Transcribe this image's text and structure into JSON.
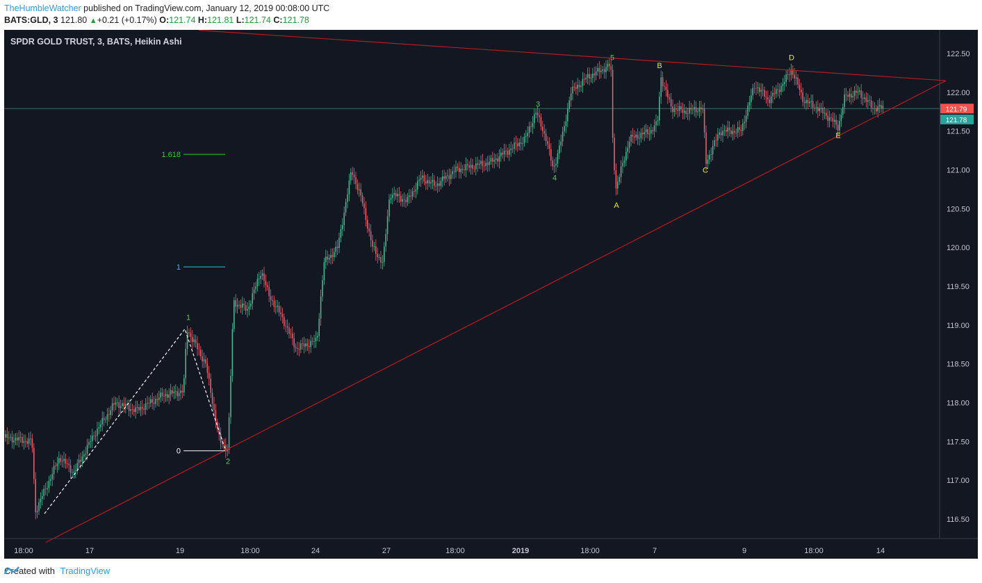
{
  "header": {
    "author": "TheHumbleWatcher",
    "published": " published on TradingView.com, January 12, 2019 00:08:00 UTC",
    "symbol_tf": "BATS:GLD, 3",
    "last": "121.80",
    "change": "+0.21 (+0.17%)",
    "o_label": "O:",
    "o_val": "121.74",
    "h_label": "H:",
    "h_val": "121.81",
    "l_label": "L:",
    "l_val": "121.74",
    "c_label": "C:",
    "c_val": "121.78"
  },
  "legend": {
    "title": "SPDR GOLD TRUST, 3, BATS, Heikin Ashi"
  },
  "footer": {
    "created_with": "Created with",
    "brand": "TradingView"
  },
  "colors": {
    "background": "#131722",
    "up_candle": "#4fb38f",
    "down_candle": "#e0606e",
    "trend_line": "#b71c1c",
    "wave_impulse_label": "#4cd14c",
    "wave_corrective_label": "#e6e64a",
    "fib_1": "#26c6da",
    "fib_1618": "#33cc33",
    "price_tag_red": "#ef5350",
    "price_tag_green": "#26a69a"
  },
  "chart_data": {
    "type": "line",
    "chart_style": "Heikin Ashi candlestick",
    "y_axis": {
      "ticks": [
        116.5,
        117.0,
        117.5,
        118.0,
        118.5,
        119.0,
        119.5,
        120.0,
        120.5,
        121.0,
        121.5,
        122.0,
        122.5
      ],
      "tick_labels": [
        "116.50",
        "117.00",
        "117.50",
        "118.00",
        "118.50",
        "119.00",
        "119.50",
        "120.00",
        "120.50",
        "121.00",
        "121.50",
        "122.00",
        "122.50"
      ],
      "range": [
        116.2,
        122.85
      ]
    },
    "x_axis": {
      "tick_labels": [
        "18:00",
        "17",
        "19",
        "18:00",
        "24",
        "27",
        "18:00",
        "2019",
        "18:00",
        "7",
        "9",
        "18:00",
        "14"
      ]
    },
    "price_path": [
      [
        0,
        117.55
      ],
      [
        0.04,
        117.5
      ],
      [
        0.045,
        116.6
      ],
      [
        0.08,
        117.3
      ],
      [
        0.1,
        117.1
      ],
      [
        0.13,
        117.6
      ],
      [
        0.16,
        118.0
      ],
      [
        0.19,
        117.9
      ],
      [
        0.23,
        118.1
      ],
      [
        0.258,
        118.15
      ],
      [
        0.263,
        118.95
      ],
      [
        0.29,
        118.5
      ],
      [
        0.31,
        117.5
      ],
      [
        0.322,
        117.4
      ],
      [
        0.33,
        119.3
      ],
      [
        0.35,
        119.2
      ],
      [
        0.37,
        119.7
      ],
      [
        0.38,
        119.4
      ],
      [
        0.4,
        119.1
      ],
      [
        0.42,
        118.7
      ],
      [
        0.45,
        118.8
      ],
      [
        0.46,
        119.8
      ],
      [
        0.48,
        120.0
      ],
      [
        0.5,
        121.0
      ],
      [
        0.515,
        120.6
      ],
      [
        0.53,
        120.0
      ],
      [
        0.545,
        119.8
      ],
      [
        0.555,
        120.7
      ],
      [
        0.58,
        120.6
      ],
      [
        0.6,
        120.9
      ],
      [
        0.62,
        120.8
      ],
      [
        0.65,
        121.0
      ],
      [
        0.7,
        121.1
      ],
      [
        0.75,
        121.4
      ],
      [
        0.765,
        121.75
      ],
      [
        0.78,
        121.4
      ],
      [
        0.79,
        121.0
      ],
      [
        0.805,
        121.5
      ],
      [
        0.815,
        122.0
      ],
      [
        0.84,
        122.2
      ],
      [
        0.873,
        122.35
      ],
      [
        0.875,
        121.5
      ],
      [
        0.88,
        120.75
      ],
      [
        0.9,
        121.4
      ],
      [
        0.93,
        121.5
      ],
      [
        0.94,
        121.6
      ],
      [
        0.945,
        122.2
      ],
      [
        0.96,
        121.8
      ],
      [
        0.98,
        121.75
      ],
      [
        1.005,
        121.8
      ],
      [
        1.01,
        121.1
      ],
      [
        1.03,
        121.5
      ],
      [
        1.06,
        121.5
      ],
      [
        1.08,
        122.1
      ],
      [
        1.1,
        121.9
      ],
      [
        1.12,
        122.1
      ],
      [
        1.133,
        122.3
      ],
      [
        1.15,
        121.9
      ],
      [
        1.17,
        121.8
      ],
      [
        1.19,
        121.65
      ],
      [
        1.2,
        121.55
      ],
      [
        1.21,
        121.95
      ],
      [
        1.23,
        122.0
      ],
      [
        1.25,
        121.8
      ],
      [
        1.265,
        121.8
      ]
    ],
    "trendlines": [
      {
        "name": "resistance",
        "from": [
          0.28,
          122.8
        ],
        "to": [
          1.355,
          122.15
        ]
      },
      {
        "name": "support",
        "from": [
          0.06,
          116.2
        ],
        "to": [
          1.355,
          122.15
        ]
      }
    ],
    "horizontal_line": 121.79,
    "wave_labels": [
      {
        "text": "1",
        "x": 0.265,
        "y": 119.1,
        "group": "impulse"
      },
      {
        "text": "2",
        "x": 0.322,
        "y": 117.25,
        "group": "impulse"
      },
      {
        "text": "3",
        "x": 0.768,
        "y": 121.85,
        "group": "impulse"
      },
      {
        "text": "4",
        "x": 0.792,
        "y": 120.9,
        "group": "impulse"
      },
      {
        "text": "5",
        "x": 0.875,
        "y": 122.45,
        "group": "impulse"
      },
      {
        "text": "A",
        "x": 0.881,
        "y": 120.55,
        "group": "corrective"
      },
      {
        "text": "B",
        "x": 0.943,
        "y": 122.35,
        "group": "corrective"
      },
      {
        "text": "C",
        "x": 1.009,
        "y": 121.0,
        "group": "corrective"
      },
      {
        "text": "D",
        "x": 1.133,
        "y": 122.45,
        "group": "corrective"
      },
      {
        "text": "E",
        "x": 1.2,
        "y": 121.45,
        "group": "corrective"
      }
    ],
    "fib_levels": [
      {
        "label": "0",
        "value": 117.38
      },
      {
        "label": "1",
        "value": 119.75
      },
      {
        "label": "1.618",
        "value": 121.2
      }
    ],
    "price_tags": [
      {
        "label": "121.79",
        "value": 121.79,
        "color": "red"
      },
      {
        "label": "121.78",
        "value": 121.65,
        "color": "green"
      }
    ]
  }
}
